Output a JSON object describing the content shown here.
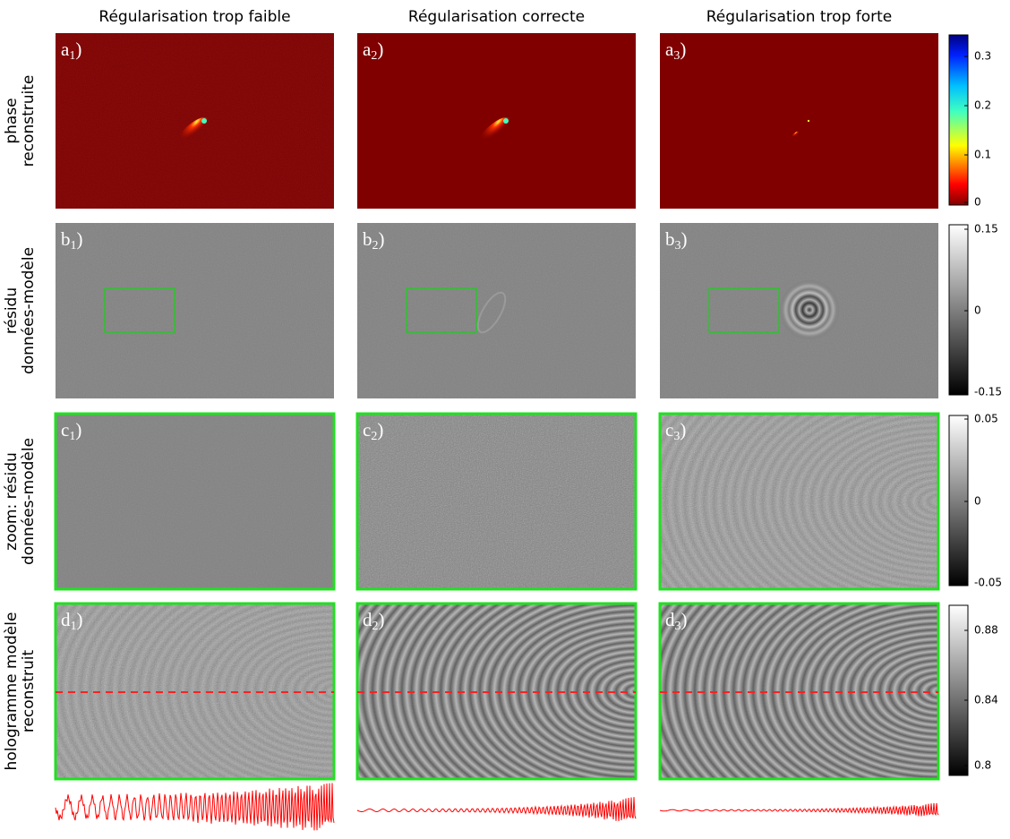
{
  "columns": [
    "Régularisation trop faible",
    "Régularisation correcte",
    "Régularisation trop forte"
  ],
  "rows": [
    {
      "label": [
        "phase",
        "reconstruite"
      ],
      "panels": [
        [
          "a",
          "1",
          ")"
        ],
        [
          "a",
          "2",
          ")"
        ],
        [
          "a",
          "3",
          ")"
        ]
      ],
      "colorbar": [
        "0.3",
        "0.2",
        "0.1",
        "0"
      ]
    },
    {
      "label": [
        "résidu",
        "données-modèle"
      ],
      "panels": [
        [
          "b",
          "1",
          ")"
        ],
        [
          "b",
          "2",
          ")"
        ],
        [
          "b",
          "3",
          ")"
        ]
      ],
      "colorbar": [
        "0.15",
        "0",
        "-0.15"
      ]
    },
    {
      "label": [
        "zoom: résidu",
        "données-modèle"
      ],
      "panels": [
        [
          "c",
          "1",
          ")"
        ],
        [
          "c",
          "2",
          ")"
        ],
        [
          "c",
          "3",
          ")"
        ]
      ],
      "colorbar": [
        "0.05",
        "0",
        "-0.05"
      ]
    },
    {
      "label": [
        "hologramme modèle",
        "reconstruit"
      ],
      "panels": [
        [
          "d",
          "1",
          ")"
        ],
        [
          "d",
          "2",
          ")"
        ],
        [
          "d",
          "3",
          ")"
        ]
      ],
      "colorbar": [
        "0.88",
        "0.84",
        "0.8"
      ]
    }
  ]
}
